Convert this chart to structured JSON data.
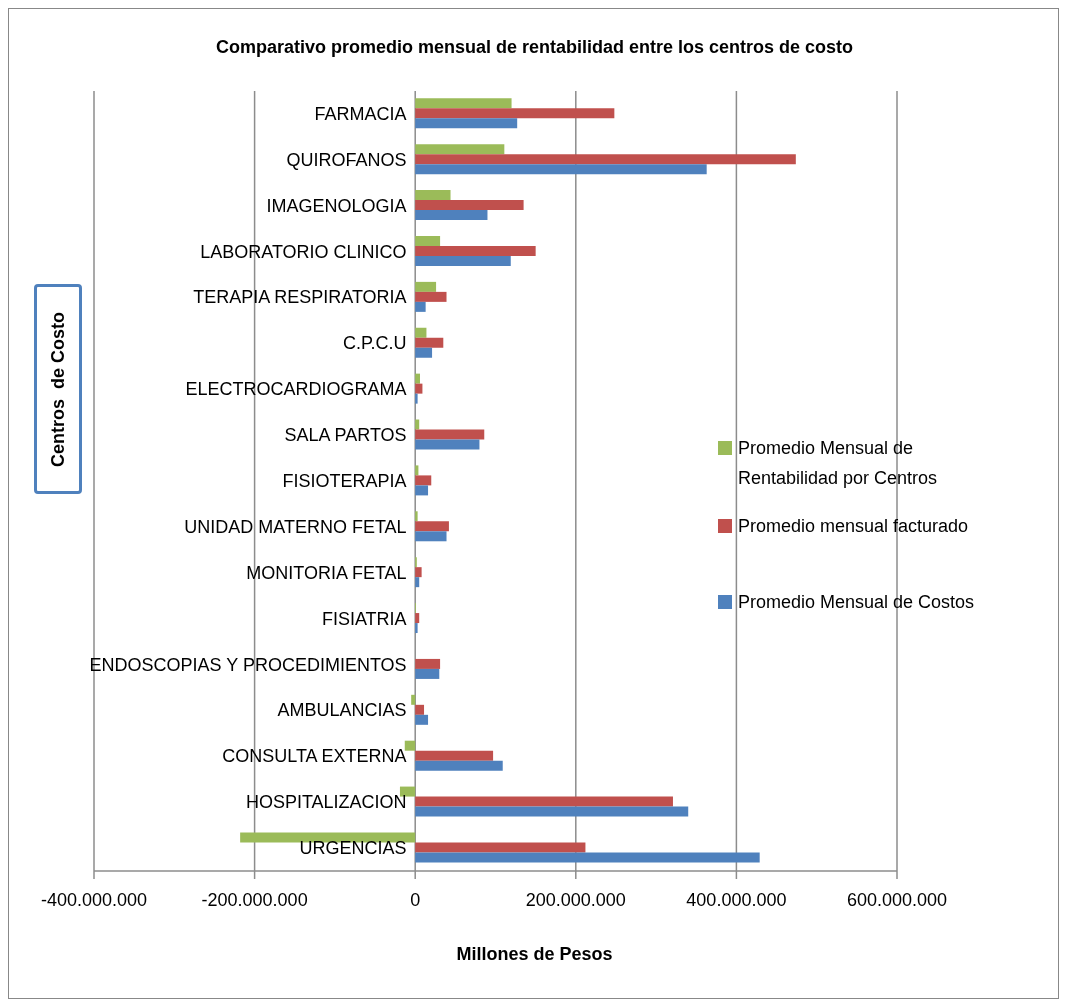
{
  "chart_data": {
    "type": "bar",
    "orientation": "horizontal",
    "title": "Comparativo promedio mensual de rentabilidad entre los centros de costo",
    "xlabel": "Millones de Pesos",
    "ylabel": "Centros  de Costo",
    "categories": [
      "FARMACIA",
      "QUIROFANOS",
      "IMAGENOLOGIA",
      "LABORATORIO CLINICO",
      "TERAPIA RESPIRATORIA",
      "C.P.C.U",
      "ELECTROCARDIOGRAMA",
      "SALA PARTOS",
      "FISIOTERAPIA",
      "UNIDAD MATERNO FETAL",
      "MONITORIA FETAL",
      "FISIATRIA",
      "ENDOSCOPIAS Y PROCEDIMIENTOS",
      "AMBULANCIAS",
      "CONSULTA EXTERNA",
      "HOSPITALIZACION",
      "URGENCIAS"
    ],
    "series": [
      {
        "name": "Promedio Mensual de Rentabilidad por Centros",
        "color": "#9bbb59",
        "values": [
          120000000,
          111000000,
          44000000,
          31000000,
          26000000,
          14000000,
          6000000,
          5000000,
          4000000,
          3000000,
          2000000,
          1000000,
          0,
          -5000000,
          -13000000,
          -19000000,
          -218000000
        ]
      },
      {
        "name": "Promedio mensual facturado",
        "color": "#c0504d",
        "values": [
          248000000,
          474000000,
          135000000,
          150000000,
          39000000,
          35000000,
          9000000,
          86000000,
          20000000,
          42000000,
          8000000,
          5000000,
          31000000,
          11000000,
          97000000,
          321000000,
          212000000
        ]
      },
      {
        "name": "Promedio Mensual de Costos",
        "color": "#4f81bd",
        "values": [
          127000000,
          363000000,
          90000000,
          119000000,
          13000000,
          21000000,
          3000000,
          80000000,
          16000000,
          39000000,
          5000000,
          3000000,
          30000000,
          16000000,
          109000000,
          340000000,
          429000000
        ]
      }
    ],
    "xlim": [
      -400000000,
      600000000
    ],
    "xticks": [
      {
        "value": -400000000,
        "label": "-400.000.000"
      },
      {
        "value": -200000000,
        "label": "-200.000.000"
      },
      {
        "value": 0,
        "label": "0"
      },
      {
        "value": 200000000,
        "label": "200.000.000"
      },
      {
        "value": 400000000,
        "label": "400.000.000"
      },
      {
        "value": 600000000,
        "label": "600.000.000"
      }
    ],
    "grid": "x",
    "legend": "right"
  }
}
